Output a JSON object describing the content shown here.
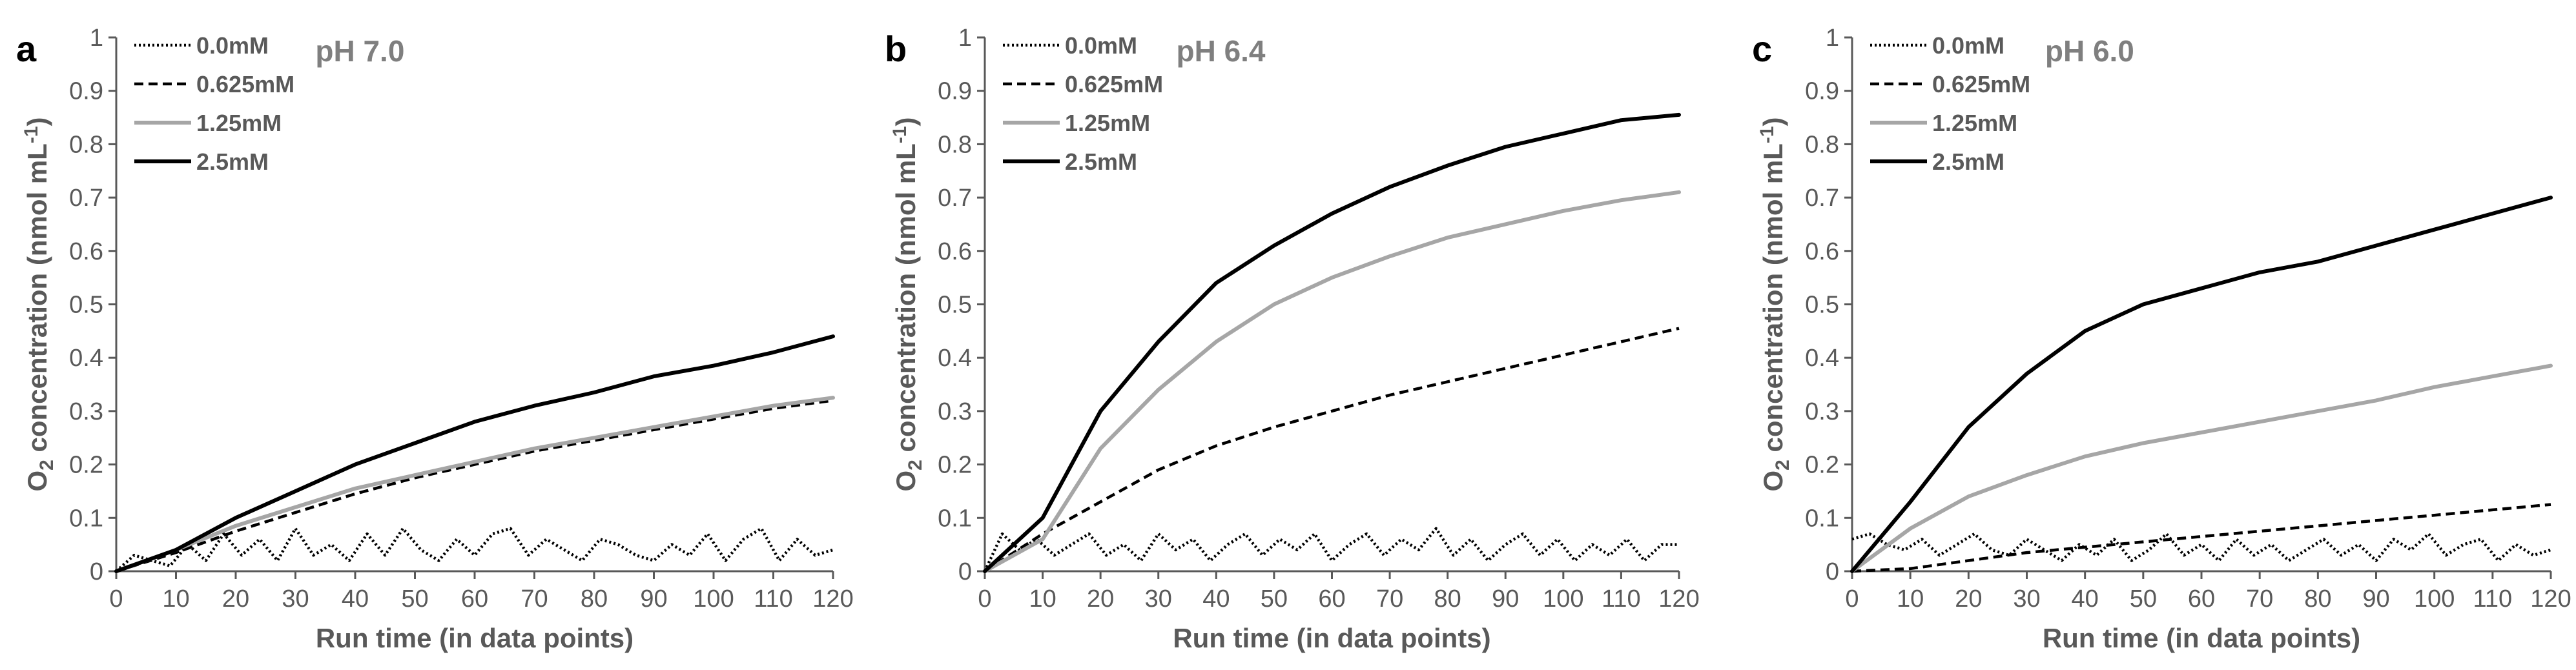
{
  "chart_data": [
    {
      "type": "line",
      "panel_label": "a",
      "title": "pH 7.0",
      "xlabel": "Run time (in data points)",
      "ylabel_main": "O",
      "ylabel_sub": "2",
      "ylabel_rest": " concentration (nmol mL",
      "ylabel_sup": "-1",
      "ylabel_close": ")",
      "xlim": [
        0,
        120
      ],
      "ylim": [
        0,
        1
      ],
      "xticks": [
        "0",
        "10",
        "20",
        "30",
        "40",
        "50",
        "60",
        "70",
        "80",
        "90",
        "100",
        "110",
        "120"
      ],
      "yticks": [
        "0",
        "0.1",
        "0.2",
        "0.3",
        "0.4",
        "0.5",
        "0.6",
        "0.7",
        "0.8",
        "0.9",
        "1"
      ],
      "legend_position": "top-left",
      "series": [
        {
          "name": "0.0mM",
          "style": "dotted",
          "color": "#000000",
          "x": [
            0,
            3,
            6,
            9,
            12,
            15,
            18,
            21,
            24,
            27,
            30,
            33,
            36,
            39,
            42,
            45,
            48,
            51,
            54,
            57,
            60,
            63,
            66,
            69,
            72,
            75,
            78,
            81,
            84,
            87,
            90,
            93,
            96,
            99,
            102,
            105,
            108,
            111,
            114,
            117,
            120
          ],
          "values": [
            0.0,
            0.03,
            0.02,
            0.01,
            0.05,
            0.02,
            0.07,
            0.03,
            0.06,
            0.02,
            0.08,
            0.03,
            0.05,
            0.02,
            0.07,
            0.03,
            0.08,
            0.04,
            0.02,
            0.06,
            0.03,
            0.07,
            0.08,
            0.03,
            0.06,
            0.04,
            0.02,
            0.06,
            0.05,
            0.03,
            0.02,
            0.05,
            0.03,
            0.07,
            0.02,
            0.06,
            0.08,
            0.02,
            0.06,
            0.03,
            0.04
          ]
        },
        {
          "name": "0.625mM",
          "style": "dashed",
          "color": "#000000",
          "x": [
            0,
            10,
            20,
            30,
            40,
            50,
            60,
            70,
            80,
            90,
            100,
            110,
            120
          ],
          "values": [
            0.0,
            0.035,
            0.075,
            0.11,
            0.145,
            0.175,
            0.2,
            0.225,
            0.245,
            0.265,
            0.285,
            0.305,
            0.32
          ]
        },
        {
          "name": "1.25mM",
          "style": "solid",
          "color": "#a6a6a6",
          "x": [
            0,
            10,
            20,
            30,
            40,
            50,
            60,
            70,
            80,
            90,
            100,
            110,
            120
          ],
          "values": [
            0.0,
            0.04,
            0.085,
            0.12,
            0.155,
            0.18,
            0.205,
            0.23,
            0.25,
            0.27,
            0.29,
            0.31,
            0.325
          ]
        },
        {
          "name": "2.5mM",
          "style": "solid",
          "color": "#000000",
          "x": [
            0,
            10,
            20,
            30,
            40,
            50,
            60,
            70,
            80,
            90,
            100,
            110,
            120
          ],
          "values": [
            0.0,
            0.04,
            0.1,
            0.15,
            0.2,
            0.24,
            0.28,
            0.31,
            0.335,
            0.365,
            0.385,
            0.41,
            0.44
          ]
        }
      ]
    },
    {
      "type": "line",
      "panel_label": "b",
      "title": "pH 6.4",
      "xlabel": "Run time (in data points)",
      "ylabel_main": "O",
      "ylabel_sub": "2",
      "ylabel_rest": " concentration (nmol mL",
      "ylabel_sup": "-1",
      "ylabel_close": ")",
      "xlim": [
        0,
        120
      ],
      "ylim": [
        0,
        1
      ],
      "xticks": [
        "0",
        "10",
        "20",
        "30",
        "40",
        "50",
        "60",
        "70",
        "80",
        "90",
        "100",
        "110",
        "120"
      ],
      "yticks": [
        "0",
        "0.1",
        "0.2",
        "0.3",
        "0.4",
        "0.5",
        "0.6",
        "0.7",
        "0.8",
        "0.9",
        "1"
      ],
      "legend_position": "top-left",
      "series": [
        {
          "name": "0.0mM",
          "style": "dotted",
          "color": "#000000",
          "x": [
            0,
            3,
            6,
            9,
            12,
            15,
            18,
            21,
            24,
            27,
            30,
            33,
            36,
            39,
            42,
            45,
            48,
            51,
            54,
            57,
            60,
            63,
            66,
            69,
            72,
            75,
            78,
            81,
            84,
            87,
            90,
            93,
            96,
            99,
            102,
            105,
            108,
            111,
            114,
            117,
            120
          ],
          "values": [
            0.0,
            0.07,
            0.04,
            0.06,
            0.03,
            0.05,
            0.07,
            0.03,
            0.05,
            0.02,
            0.07,
            0.04,
            0.06,
            0.02,
            0.05,
            0.07,
            0.03,
            0.06,
            0.04,
            0.07,
            0.02,
            0.05,
            0.07,
            0.03,
            0.06,
            0.04,
            0.08,
            0.03,
            0.06,
            0.02,
            0.05,
            0.07,
            0.03,
            0.06,
            0.02,
            0.05,
            0.03,
            0.06,
            0.02,
            0.05,
            0.05
          ]
        },
        {
          "name": "0.625mM",
          "style": "dashed",
          "color": "#000000",
          "x": [
            0,
            10,
            20,
            30,
            40,
            50,
            60,
            70,
            80,
            90,
            100,
            110,
            120
          ],
          "values": [
            0.0,
            0.07,
            0.13,
            0.19,
            0.235,
            0.27,
            0.3,
            0.33,
            0.355,
            0.38,
            0.405,
            0.43,
            0.455
          ]
        },
        {
          "name": "1.25mM",
          "style": "solid",
          "color": "#a6a6a6",
          "x": [
            0,
            10,
            20,
            30,
            40,
            50,
            60,
            70,
            80,
            90,
            100,
            110,
            120
          ],
          "values": [
            0.0,
            0.06,
            0.23,
            0.34,
            0.43,
            0.5,
            0.55,
            0.59,
            0.625,
            0.65,
            0.675,
            0.695,
            0.71
          ]
        },
        {
          "name": "2.5mM",
          "style": "solid",
          "color": "#000000",
          "x": [
            0,
            10,
            20,
            30,
            40,
            50,
            60,
            70,
            80,
            90,
            100,
            110,
            120
          ],
          "values": [
            0.0,
            0.1,
            0.3,
            0.43,
            0.54,
            0.61,
            0.67,
            0.72,
            0.76,
            0.795,
            0.82,
            0.845,
            0.855
          ]
        }
      ]
    },
    {
      "type": "line",
      "panel_label": "c",
      "title": "pH 6.0",
      "xlabel": "Run time (in data points)",
      "ylabel_main": "O",
      "ylabel_sub": "2",
      "ylabel_rest": " concentration (nmol mL",
      "ylabel_sup": "-1",
      "ylabel_close": ")",
      "xlim": [
        0,
        120
      ],
      "ylim": [
        0,
        1
      ],
      "xticks": [
        "0",
        "10",
        "20",
        "30",
        "40",
        "50",
        "60",
        "70",
        "80",
        "90",
        "100",
        "110",
        "120"
      ],
      "yticks": [
        "0",
        "0.1",
        "0.2",
        "0.3",
        "0.4",
        "0.5",
        "0.6",
        "0.7",
        "0.8",
        "0.9",
        "1"
      ],
      "legend_position": "top-left",
      "series": [
        {
          "name": "0.0mM",
          "style": "dotted",
          "color": "#000000",
          "x": [
            0,
            3,
            6,
            9,
            12,
            15,
            18,
            21,
            24,
            27,
            30,
            33,
            36,
            39,
            42,
            45,
            48,
            51,
            54,
            57,
            60,
            63,
            66,
            69,
            72,
            75,
            78,
            81,
            84,
            87,
            90,
            93,
            96,
            99,
            102,
            105,
            108,
            111,
            114,
            117,
            120
          ],
          "values": [
            0.06,
            0.07,
            0.05,
            0.04,
            0.06,
            0.03,
            0.05,
            0.07,
            0.04,
            0.03,
            0.06,
            0.04,
            0.02,
            0.05,
            0.03,
            0.06,
            0.02,
            0.04,
            0.07,
            0.03,
            0.05,
            0.02,
            0.06,
            0.03,
            0.05,
            0.02,
            0.04,
            0.06,
            0.03,
            0.05,
            0.02,
            0.06,
            0.04,
            0.07,
            0.03,
            0.05,
            0.06,
            0.02,
            0.05,
            0.03,
            0.04
          ]
        },
        {
          "name": "0.625mM",
          "style": "dashed",
          "color": "#000000",
          "x": [
            0,
            10,
            20,
            30,
            40,
            50,
            60,
            70,
            80,
            90,
            100,
            110,
            120
          ],
          "values": [
            0.0,
            0.005,
            0.02,
            0.035,
            0.045,
            0.055,
            0.065,
            0.075,
            0.085,
            0.095,
            0.105,
            0.115,
            0.125
          ]
        },
        {
          "name": "1.25mM",
          "style": "solid",
          "color": "#a6a6a6",
          "x": [
            0,
            10,
            20,
            30,
            40,
            50,
            60,
            70,
            80,
            90,
            100,
            110,
            120
          ],
          "values": [
            0.0,
            0.08,
            0.14,
            0.18,
            0.215,
            0.24,
            0.26,
            0.28,
            0.3,
            0.32,
            0.345,
            0.365,
            0.385
          ]
        },
        {
          "name": "2.5mM",
          "style": "solid",
          "color": "#000000",
          "x": [
            0,
            10,
            20,
            30,
            40,
            50,
            60,
            70,
            80,
            90,
            100,
            110,
            120
          ],
          "values": [
            0.0,
            0.13,
            0.27,
            0.37,
            0.45,
            0.5,
            0.53,
            0.56,
            0.58,
            0.61,
            0.64,
            0.67,
            0.7
          ]
        }
      ]
    }
  ]
}
